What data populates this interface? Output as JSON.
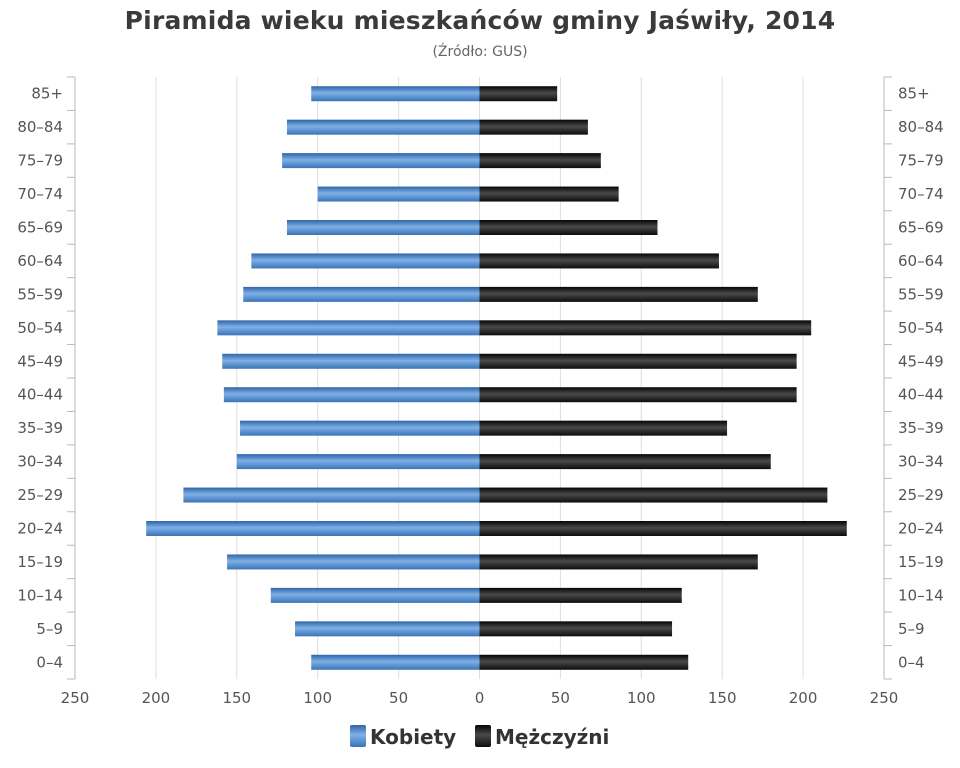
{
  "chart_data": {
    "type": "bar",
    "orientation": "horizontal-pyramid",
    "title": "Piramida wieku mieszkańców gminy Jaświły, 2014",
    "subtitle": "(Źródło: GUS)",
    "categories": [
      "0–4",
      "5–9",
      "10–14",
      "15–19",
      "20–24",
      "25–29",
      "30–34",
      "35–39",
      "40–44",
      "45–49",
      "50–54",
      "55–59",
      "60–64",
      "65–69",
      "70–74",
      "75–79",
      "80–84",
      "85+"
    ],
    "series": [
      {
        "name": "Kobiety",
        "side": "left",
        "color": "#4a86c8",
        "values": [
          104,
          114,
          129,
          156,
          206,
          183,
          150,
          148,
          158,
          159,
          162,
          146,
          141,
          119,
          100,
          122,
          119,
          104
        ]
      },
      {
        "name": "Mężczyźni",
        "side": "right",
        "color": "#1a1a1a",
        "values": [
          129,
          119,
          125,
          172,
          227,
          215,
          180,
          153,
          196,
          196,
          205,
          172,
          148,
          110,
          86,
          75,
          67,
          48
        ]
      }
    ],
    "xlim": [
      -250,
      250
    ],
    "x_ticks": [
      -250,
      -200,
      -150,
      -100,
      -50,
      0,
      50,
      100,
      150,
      200,
      250
    ],
    "x_tick_labels": [
      "250",
      "200",
      "150",
      "100",
      "50",
      "0",
      "50",
      "100",
      "150",
      "200",
      "250"
    ],
    "grid": true,
    "legend_position": "bottom-center"
  }
}
